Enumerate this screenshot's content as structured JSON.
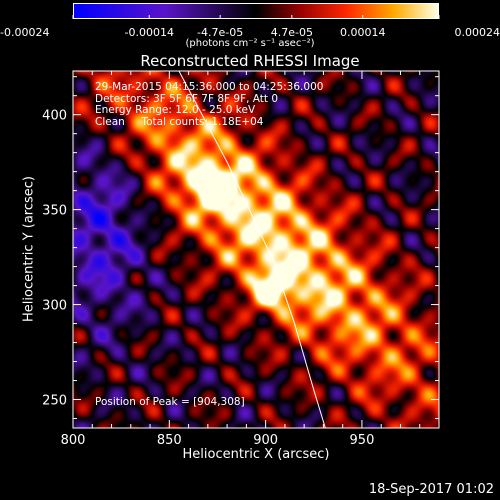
{
  "chart_data": {
    "type": "heatmap",
    "title": "Reconstructed RHESSI Image",
    "xlabel": "Heliocentric X (arcsec)",
    "ylabel": "Heliocentric Y (arcsec)",
    "xlim": [
      800,
      990
    ],
    "ylim": [
      235,
      423
    ],
    "x_ticks": [
      800,
      850,
      900,
      950
    ],
    "y_ticks": [
      250,
      300,
      350,
      400
    ],
    "x_tick_labels": [
      "800",
      "850",
      "900",
      "950"
    ],
    "y_tick_labels": [
      "250",
      "300",
      "350",
      "400"
    ],
    "colorbar": {
      "ticks": [
        -0.00024,
        -0.00014,
        -4.7e-05,
        4.7e-05,
        0.00014,
        0.00024
      ],
      "tick_labels": [
        "-0.00024",
        "-0.00014",
        "-4.7e-05",
        "4.7e-05",
        "0.00014",
        "0.00024"
      ],
      "unit_text": "(photons cm⁻² s⁻¹ asec⁻²)",
      "range": [
        -0.00024,
        0.00024
      ]
    },
    "info_lines": [
      "29-Mar-2015 04:15:36.000 to 04:25:36.000",
      "Detectors: 3F 5F 6F 7F 8F 9F, Att 0",
      "Energy Range: 12.0 - 25.0 keV",
      "Clean     Total counts: 1.18E+04"
    ],
    "peak_text": "Position of Peak = [904,308]",
    "peak_position": [
      904,
      308
    ],
    "limb_curve": [
      [
        855,
        423
      ],
      [
        880,
        375
      ],
      [
        904,
        323
      ],
      [
        915,
        290
      ],
      [
        925,
        255
      ],
      [
        931,
        235
      ]
    ],
    "grid": false
  },
  "footer": {
    "timestamp": "18-Sep-2017 01:02"
  },
  "colors": {
    "background": "#000000",
    "text": "#ffffff",
    "limb": "#ffffff"
  }
}
